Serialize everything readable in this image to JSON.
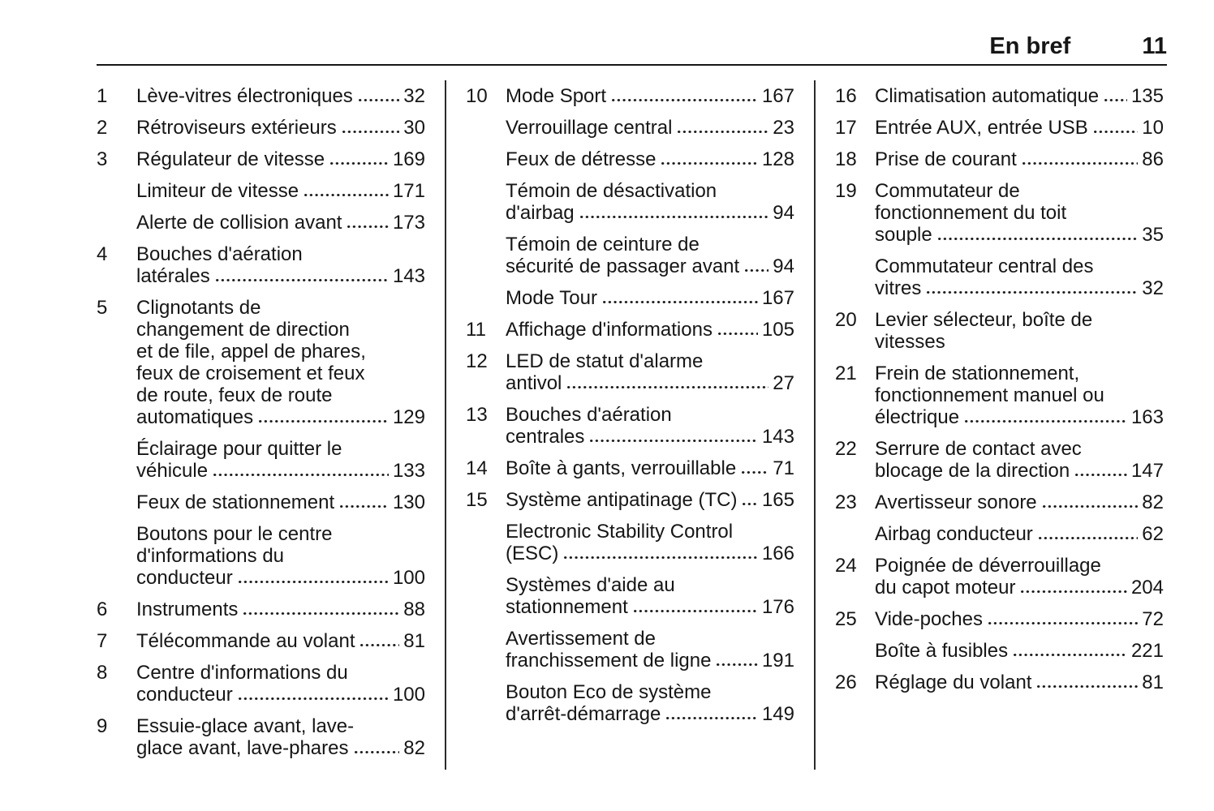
{
  "header": {
    "title": "En bref",
    "page_number": "11"
  },
  "colors": {
    "text": "#161616",
    "background": "#ffffff",
    "rule": "#161616",
    "divider": "#2b2b2b"
  },
  "toc": {
    "columns": [
      {
        "entries": [
          {
            "num": "1",
            "lines": [
              "Lève-vitres électroniques"
            ],
            "page": "32"
          },
          {
            "num": "2",
            "lines": [
              "Rétroviseurs extérieurs"
            ],
            "page": "30"
          },
          {
            "num": "3",
            "lines": [
              "Régulateur de vitesse"
            ],
            "page": "169"
          },
          {
            "num": "",
            "lines": [
              "Limiteur de vitesse"
            ],
            "page": "171"
          },
          {
            "num": "",
            "lines": [
              "Alerte de collision avant"
            ],
            "page": "173"
          },
          {
            "num": "4",
            "lines": [
              "Bouches d'aération",
              "latérales"
            ],
            "page": "143"
          },
          {
            "num": "5",
            "lines": [
              "Clignotants de",
              "changement de direction",
              "et de file, appel de phares,",
              "feux de croisement et feux",
              "de route, feux de route",
              "automatiques"
            ],
            "page": "129"
          },
          {
            "num": "",
            "lines": [
              "Éclairage pour quitter le",
              "véhicule"
            ],
            "page": "133"
          },
          {
            "num": "",
            "lines": [
              "Feux de stationnement"
            ],
            "page": "130"
          },
          {
            "num": "",
            "lines": [
              "Boutons pour le centre",
              "d'informations du",
              "conducteur"
            ],
            "page": "100"
          },
          {
            "num": "6",
            "lines": [
              "Instruments"
            ],
            "page": "88"
          },
          {
            "num": "7",
            "lines": [
              "Télécommande au volant"
            ],
            "page": "81"
          },
          {
            "num": "8",
            "lines": [
              "Centre d'informations du",
              "conducteur"
            ],
            "page": "100"
          },
          {
            "num": "9",
            "lines": [
              "Essuie-glace avant, lave-",
              "glace avant, lave-phares"
            ],
            "page": "82"
          }
        ]
      },
      {
        "entries": [
          {
            "num": "10",
            "lines": [
              "Mode Sport"
            ],
            "page": "167"
          },
          {
            "num": "",
            "lines": [
              "Verrouillage central"
            ],
            "page": "23"
          },
          {
            "num": "",
            "lines": [
              "Feux de détresse"
            ],
            "page": "128"
          },
          {
            "num": "",
            "lines": [
              "Témoin de désactivation",
              "d'airbag"
            ],
            "page": "94"
          },
          {
            "num": "",
            "lines": [
              "Témoin de ceinture de",
              "sécurité de passager avant"
            ],
            "page": "94"
          },
          {
            "num": "",
            "lines": [
              "Mode Tour"
            ],
            "page": "167"
          },
          {
            "num": "11",
            "lines": [
              "Affichage d'informations"
            ],
            "page": "105"
          },
          {
            "num": "12",
            "lines": [
              "LED de statut d'alarme",
              "antivol"
            ],
            "page": "27"
          },
          {
            "num": "13",
            "lines": [
              "Bouches d'aération",
              "centrales"
            ],
            "page": "143"
          },
          {
            "num": "14",
            "lines": [
              "Boîte à gants, verrouillable"
            ],
            "page": "71"
          },
          {
            "num": "15",
            "lines": [
              "Système antipatinage (TC)"
            ],
            "page": "165"
          },
          {
            "num": "",
            "lines": [
              "Electronic Stability Control",
              "(ESC)"
            ],
            "page": "166"
          },
          {
            "num": "",
            "lines": [
              "Systèmes d'aide au",
              "stationnement"
            ],
            "page": "176"
          },
          {
            "num": "",
            "lines": [
              "Avertissement de",
              "franchissement de ligne"
            ],
            "page": "191"
          },
          {
            "num": "",
            "lines": [
              "Bouton Eco de système",
              "d'arrêt-démarrage"
            ],
            "page": "149"
          }
        ]
      },
      {
        "entries": [
          {
            "num": "16",
            "lines": [
              "Climatisation automatique"
            ],
            "page": "135"
          },
          {
            "num": "17",
            "lines": [
              "Entrée AUX, entrée USB"
            ],
            "page": "10"
          },
          {
            "num": "18",
            "lines": [
              "Prise de courant"
            ],
            "page": "86"
          },
          {
            "num": "19",
            "lines": [
              "Commutateur de",
              "fonctionnement du toit",
              "souple"
            ],
            "page": "35"
          },
          {
            "num": "",
            "lines": [
              "Commutateur central des",
              "vitres"
            ],
            "page": "32"
          },
          {
            "num": "20",
            "lines": [
              "Levier sélecteur, boîte de",
              "vitesses"
            ],
            "page": null
          },
          {
            "num": "21",
            "lines": [
              "Frein de stationnement,",
              "fonctionnement manuel ou",
              "électrique"
            ],
            "page": "163"
          },
          {
            "num": "22",
            "lines": [
              "Serrure de contact avec",
              "blocage de la direction"
            ],
            "page": "147"
          },
          {
            "num": "23",
            "lines": [
              "Avertisseur sonore"
            ],
            "page": "82"
          },
          {
            "num": "",
            "lines": [
              "Airbag conducteur"
            ],
            "page": "62"
          },
          {
            "num": "24",
            "lines": [
              "Poignée de déverrouillage",
              "du capot moteur"
            ],
            "page": "204"
          },
          {
            "num": "25",
            "lines": [
              "Vide-poches"
            ],
            "page": "72"
          },
          {
            "num": "",
            "lines": [
              "Boîte à fusibles"
            ],
            "page": "221"
          },
          {
            "num": "26",
            "lines": [
              "Réglage du volant"
            ],
            "page": "81"
          }
        ]
      }
    ]
  }
}
